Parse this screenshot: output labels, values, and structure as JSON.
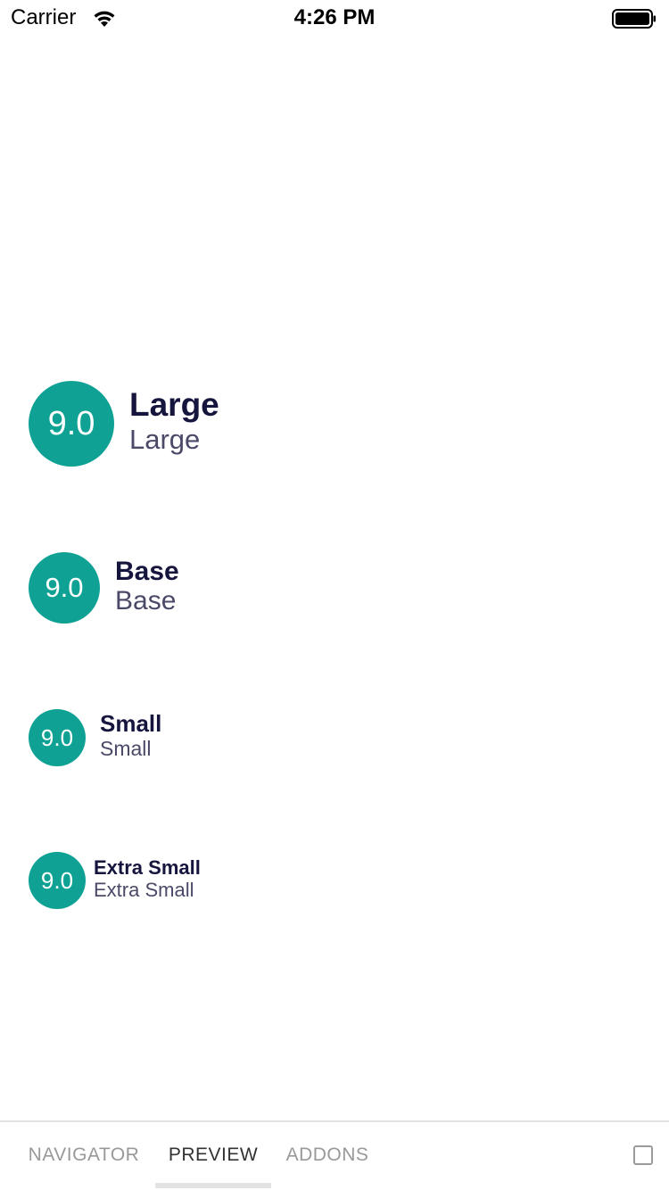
{
  "status_bar": {
    "carrier": "Carrier",
    "time": "4:26 PM",
    "wifi_icon": "wifi-icon",
    "battery_icon": "battery-icon"
  },
  "ratings": [
    {
      "size": "large",
      "score": "9.0",
      "title": "Large",
      "subtitle": "Large"
    },
    {
      "size": "base",
      "score": "9.0",
      "title": "Base",
      "subtitle": "Base"
    },
    {
      "size": "small",
      "score": "9.0",
      "title": "Small",
      "subtitle": "Small"
    },
    {
      "size": "extra-small",
      "score": "9.0",
      "title": "Extra Small",
      "subtitle": "Extra Small"
    }
  ],
  "tabbar": {
    "tabs": [
      {
        "label": "NAVIGATOR",
        "active": false
      },
      {
        "label": "PREVIEW",
        "active": true
      },
      {
        "label": "ADDONS",
        "active": false
      }
    ],
    "toggle_icon": "square-icon"
  },
  "colors": {
    "badge": "#0fa294",
    "title": "#16153e",
    "subtitle": "#4a4a68"
  }
}
